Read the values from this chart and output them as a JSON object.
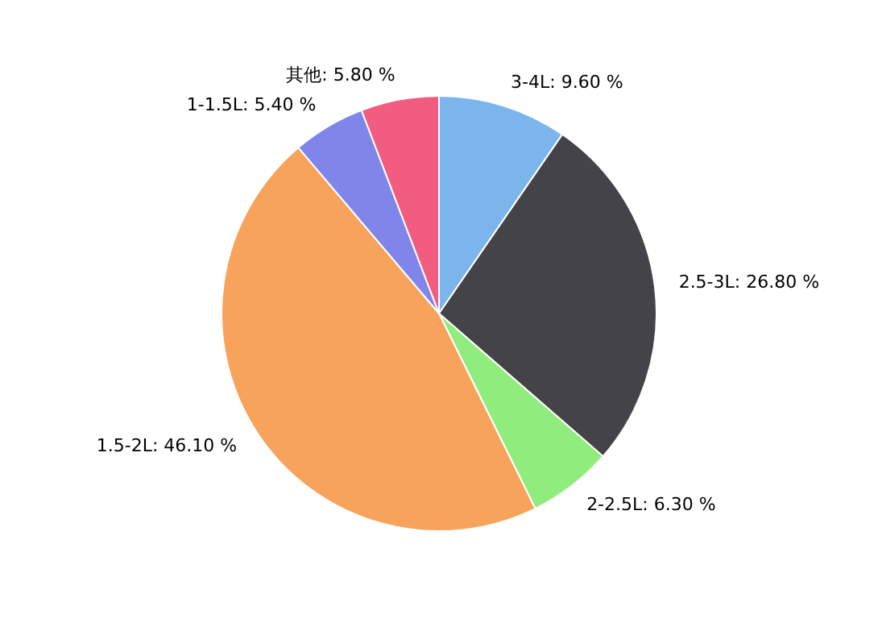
{
  "chart_data": {
    "type": "pie",
    "categories": [
      "3-4L",
      "2.5-3L",
      "2-2.5L",
      "1.5-2L",
      "1-1.5L",
      "其他"
    ],
    "values": [
      9.6,
      26.8,
      6.3,
      46.1,
      5.4,
      5.8
    ],
    "colors": [
      "#7cb5ec",
      "#434348",
      "#90ed7d",
      "#f7a35c",
      "#8085e9",
      "#f15c80"
    ],
    "value_labels": [
      "9.60 %",
      "26.80 %",
      "6.30 %",
      "46.10 %",
      "5.40 %",
      "5.80 %"
    ],
    "legend": false
  }
}
